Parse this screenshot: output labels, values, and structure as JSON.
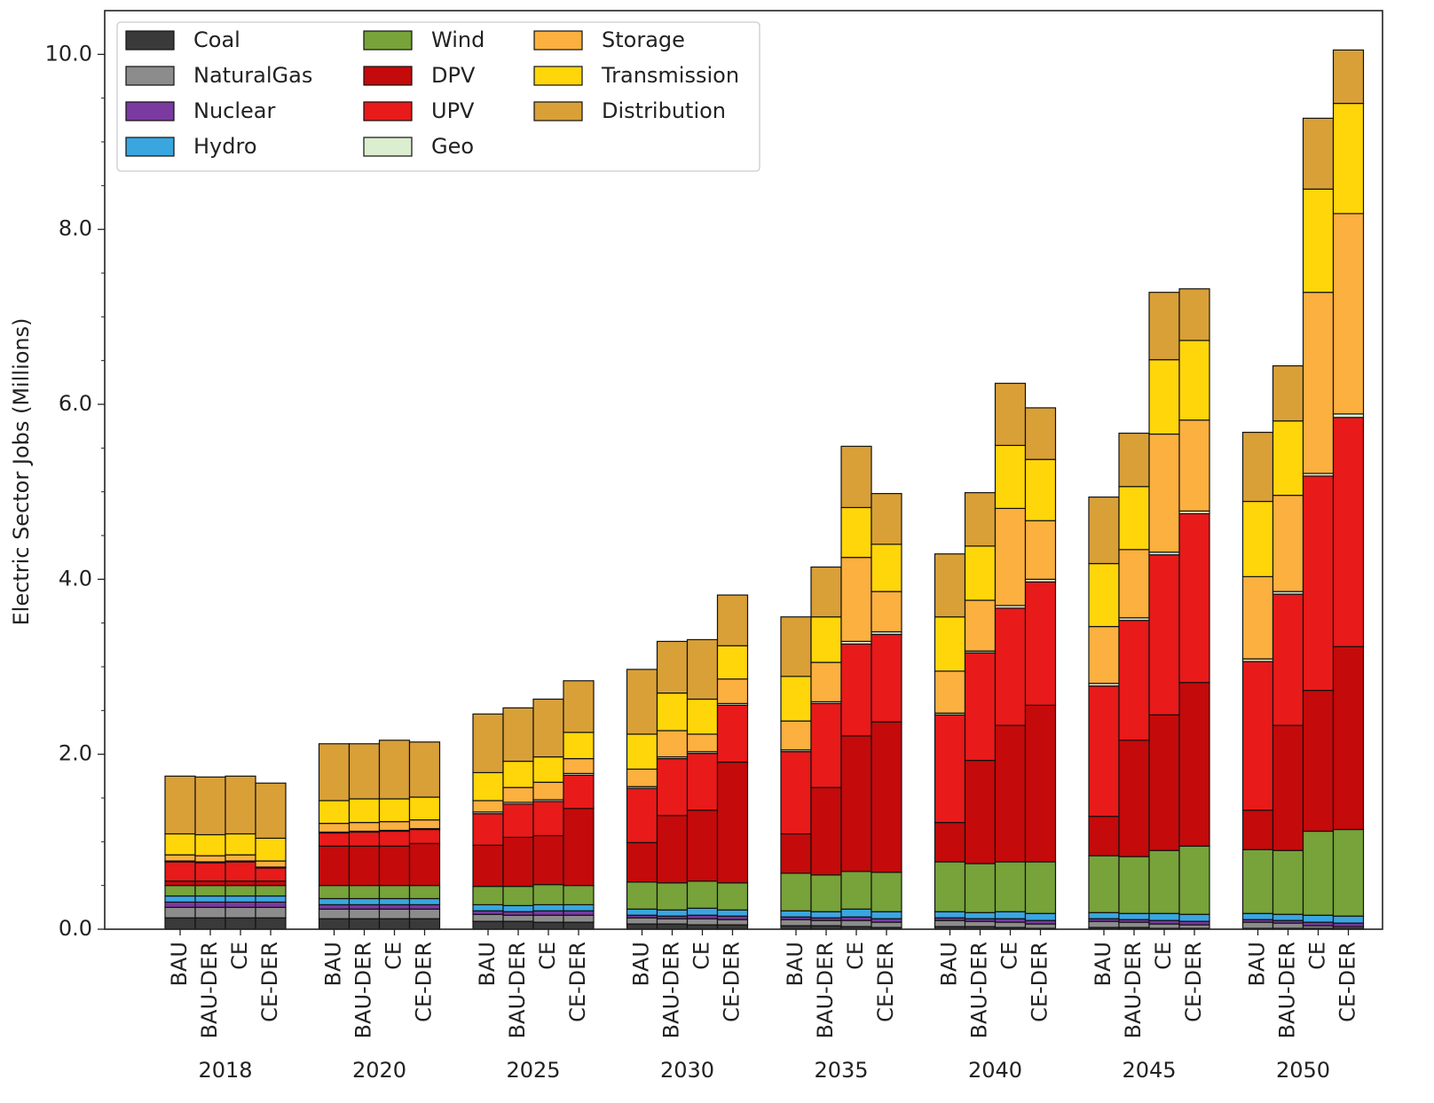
{
  "chart_data": {
    "type": "bar",
    "stacked": true,
    "title": "",
    "xlabel": "",
    "ylabel": "Electric Sector Jobs (Millions)",
    "ylim": [
      0,
      10.5
    ],
    "yticks": [
      "0.0",
      "2.0",
      "4.0",
      "6.0",
      "8.0",
      "10.0"
    ],
    "grid": false,
    "legend_position": "top-left",
    "years": [
      "2018",
      "2020",
      "2025",
      "2030",
      "2035",
      "2040",
      "2045",
      "2050"
    ],
    "scenarios": [
      "BAU",
      "BAU-DER",
      "CE",
      "CE-DER"
    ],
    "series": [
      {
        "name": "Coal",
        "color": "#3a3a3a",
        "values": [
          [
            0.13,
            0.13,
            0.13,
            0.13
          ],
          [
            0.12,
            0.12,
            0.12,
            0.12
          ],
          [
            0.09,
            0.09,
            0.08,
            0.08
          ],
          [
            0.06,
            0.06,
            0.05,
            0.05
          ],
          [
            0.04,
            0.04,
            0.03,
            0.02
          ],
          [
            0.03,
            0.03,
            0.02,
            0.01
          ],
          [
            0.02,
            0.02,
            0.01,
            0.01
          ],
          [
            0.01,
            0.01,
            0.01,
            0.01
          ]
        ]
      },
      {
        "name": "NaturalGas",
        "color": "#8c8c8c",
        "values": [
          [
            0.12,
            0.12,
            0.12,
            0.12
          ],
          [
            0.11,
            0.11,
            0.11,
            0.11
          ],
          [
            0.08,
            0.07,
            0.08,
            0.08
          ],
          [
            0.07,
            0.06,
            0.07,
            0.06
          ],
          [
            0.07,
            0.06,
            0.07,
            0.06
          ],
          [
            0.07,
            0.06,
            0.06,
            0.05
          ],
          [
            0.07,
            0.06,
            0.05,
            0.04
          ],
          [
            0.07,
            0.06,
            0.03,
            0.02
          ]
        ]
      },
      {
        "name": "Nuclear",
        "color": "#7a3aa0",
        "values": [
          [
            0.06,
            0.06,
            0.06,
            0.06
          ],
          [
            0.05,
            0.05,
            0.05,
            0.05
          ],
          [
            0.04,
            0.04,
            0.05,
            0.05
          ],
          [
            0.03,
            0.03,
            0.04,
            0.04
          ],
          [
            0.03,
            0.03,
            0.04,
            0.04
          ],
          [
            0.03,
            0.03,
            0.04,
            0.04
          ],
          [
            0.03,
            0.03,
            0.04,
            0.04
          ],
          [
            0.03,
            0.03,
            0.04,
            0.04
          ]
        ]
      },
      {
        "name": "Hydro",
        "color": "#3aa6e0",
        "values": [
          [
            0.07,
            0.07,
            0.07,
            0.07
          ],
          [
            0.07,
            0.07,
            0.07,
            0.07
          ],
          [
            0.07,
            0.07,
            0.07,
            0.07
          ],
          [
            0.07,
            0.07,
            0.08,
            0.07
          ],
          [
            0.07,
            0.07,
            0.09,
            0.08
          ],
          [
            0.07,
            0.07,
            0.08,
            0.08
          ],
          [
            0.07,
            0.07,
            0.08,
            0.08
          ],
          [
            0.07,
            0.07,
            0.08,
            0.08
          ]
        ]
      },
      {
        "name": "Wind",
        "color": "#77a33a",
        "values": [
          [
            0.12,
            0.12,
            0.12,
            0.12
          ],
          [
            0.15,
            0.15,
            0.15,
            0.15
          ],
          [
            0.21,
            0.22,
            0.23,
            0.22
          ],
          [
            0.31,
            0.31,
            0.31,
            0.31
          ],
          [
            0.43,
            0.42,
            0.43,
            0.45
          ],
          [
            0.57,
            0.56,
            0.57,
            0.59
          ],
          [
            0.65,
            0.65,
            0.72,
            0.78
          ],
          [
            0.73,
            0.73,
            0.96,
            0.99
          ]
        ]
      },
      {
        "name": "DPV",
        "color": "#c40a0a",
        "values": [
          [
            0.05,
            0.05,
            0.05,
            0.05
          ],
          [
            0.45,
            0.45,
            0.45,
            0.48
          ],
          [
            0.47,
            0.56,
            0.56,
            0.88
          ],
          [
            0.45,
            0.77,
            0.81,
            1.38
          ],
          [
            0.45,
            1.0,
            1.55,
            1.72
          ],
          [
            0.45,
            1.18,
            1.56,
            1.79
          ],
          [
            0.45,
            1.33,
            1.55,
            1.87
          ],
          [
            0.45,
            1.43,
            1.61,
            2.09
          ]
        ]
      },
      {
        "name": "UPV",
        "color": "#e81a1a",
        "values": [
          [
            0.22,
            0.21,
            0.22,
            0.15
          ],
          [
            0.15,
            0.16,
            0.17,
            0.16
          ],
          [
            0.36,
            0.38,
            0.39,
            0.38
          ],
          [
            0.62,
            0.65,
            0.65,
            0.65
          ],
          [
            0.94,
            0.96,
            1.05,
            1.0
          ],
          [
            1.23,
            1.23,
            1.34,
            1.41
          ],
          [
            1.49,
            1.37,
            1.83,
            1.93
          ],
          [
            1.7,
            1.5,
            2.45,
            2.62
          ]
        ]
      },
      {
        "name": "Geo",
        "color": "#dbeed0",
        "values": [
          [
            0.01,
            0.01,
            0.01,
            0.01
          ],
          [
            0.01,
            0.01,
            0.01,
            0.01
          ],
          [
            0.02,
            0.02,
            0.02,
            0.02
          ],
          [
            0.02,
            0.02,
            0.02,
            0.02
          ],
          [
            0.02,
            0.02,
            0.03,
            0.03
          ],
          [
            0.02,
            0.02,
            0.03,
            0.03
          ],
          [
            0.03,
            0.03,
            0.03,
            0.03
          ],
          [
            0.03,
            0.03,
            0.03,
            0.04
          ]
        ]
      },
      {
        "name": "Storage",
        "color": "#fbb040",
        "values": [
          [
            0.07,
            0.07,
            0.07,
            0.07
          ],
          [
            0.1,
            0.1,
            0.1,
            0.1
          ],
          [
            0.13,
            0.17,
            0.2,
            0.17
          ],
          [
            0.2,
            0.3,
            0.2,
            0.28
          ],
          [
            0.33,
            0.45,
            0.96,
            0.46
          ],
          [
            0.48,
            0.58,
            1.11,
            0.67
          ],
          [
            0.65,
            0.78,
            1.35,
            1.04
          ],
          [
            0.94,
            1.1,
            2.07,
            2.29
          ]
        ]
      },
      {
        "name": "Transmission",
        "color": "#ffd60a",
        "values": [
          [
            0.24,
            0.24,
            0.24,
            0.26
          ],
          [
            0.26,
            0.27,
            0.26,
            0.26
          ],
          [
            0.32,
            0.3,
            0.29,
            0.3
          ],
          [
            0.4,
            0.43,
            0.4,
            0.38
          ],
          [
            0.51,
            0.52,
            0.57,
            0.54
          ],
          [
            0.62,
            0.62,
            0.72,
            0.7
          ],
          [
            0.72,
            0.72,
            0.85,
            0.91
          ],
          [
            0.86,
            0.85,
            1.18,
            1.26
          ]
        ]
      },
      {
        "name": "Distribution",
        "color": "#d9a038",
        "values": [
          [
            0.66,
            0.66,
            0.66,
            0.63
          ],
          [
            0.65,
            0.63,
            0.67,
            0.63
          ],
          [
            0.67,
            0.61,
            0.66,
            0.59
          ],
          [
            0.74,
            0.59,
            0.68,
            0.58
          ],
          [
            0.68,
            0.57,
            0.7,
            0.58
          ],
          [
            0.72,
            0.61,
            0.71,
            0.59
          ],
          [
            0.76,
            0.61,
            0.77,
            0.59
          ],
          [
            0.79,
            0.63,
            0.81,
            0.61
          ]
        ]
      }
    ]
  }
}
